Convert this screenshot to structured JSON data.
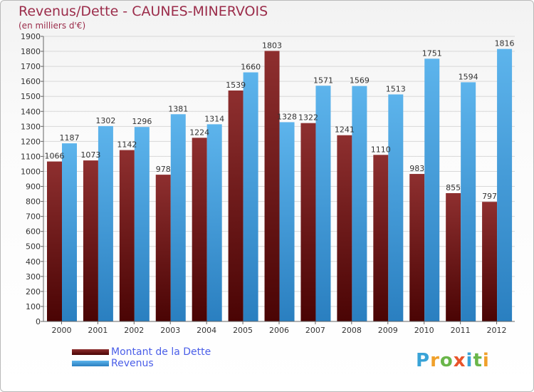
{
  "title": "Revenus/Dette - CAUNES-MINERVOIS",
  "subtitle": "(en milliers d'€)",
  "logo": "Proxiti",
  "colors": {
    "dette": "#7a1a1a",
    "revenus": "#3f9ee0",
    "title": "#9b2c4a",
    "legend_text": "#4a5ee8"
  },
  "chart_data": {
    "type": "bar",
    "title": "Revenus/Dette - CAUNES-MINERVOIS",
    "subtitle": "(en milliers d'€)",
    "categories": [
      "2000",
      "2001",
      "2002",
      "2003",
      "2004",
      "2005",
      "2006",
      "2007",
      "2008",
      "2009",
      "2010",
      "2011",
      "2012"
    ],
    "series": [
      {
        "name": "Montant de la Dette",
        "values": [
          1066,
          1073,
          1142,
          978,
          1224,
          1539,
          1803,
          1322,
          1241,
          1110,
          983,
          855,
          797
        ],
        "labels": [
          "1066",
          "1073",
          "1142",
          "978",
          "1224",
          "1539",
          "1803",
          "1322",
          "1241",
          "1110",
          "983",
          "855",
          "797"
        ],
        "color": "#7a1a1a"
      },
      {
        "name": "Revenus",
        "values": [
          1187,
          1302,
          1296,
          1381,
          1314,
          1660,
          1328,
          1571,
          1569,
          1513,
          1751,
          1594,
          1816
        ],
        "labels": [
          "1187",
          "1302",
          "1296",
          "1381",
          "1314",
          "1660",
          "1328",
          "1571",
          "1569",
          "1513",
          "1751",
          "1594",
          "1816"
        ],
        "color": "#3f9ee0"
      }
    ],
    "yticks": [
      "0",
      "100",
      "200",
      "300",
      "400",
      "500",
      "600",
      "700",
      "800",
      "900",
      "1000",
      "1100",
      "1200",
      "1300",
      "1400",
      "1500",
      "1600",
      "1700",
      "1800",
      "1900"
    ],
    "ylim": [
      0,
      1900
    ],
    "xlabel": "",
    "ylabel": "",
    "grid": true,
    "legend": "bottom-left"
  }
}
